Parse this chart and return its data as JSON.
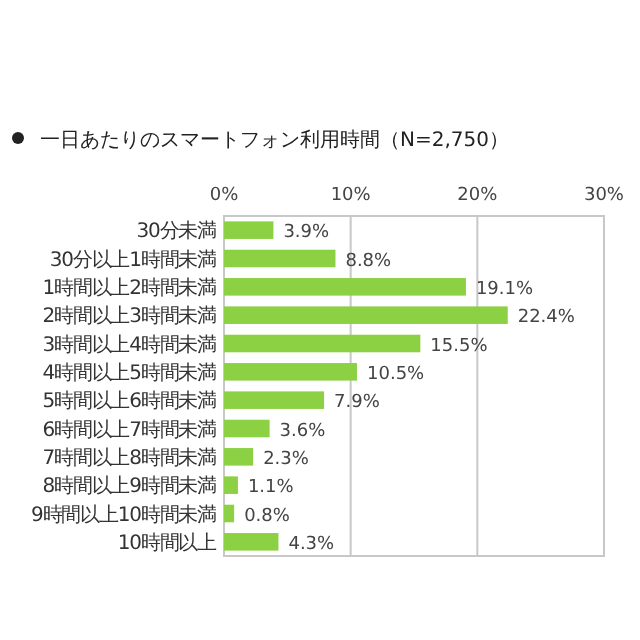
{
  "chart_data": {
    "type": "bar",
    "orientation": "horizontal",
    "title": "一日あたりのスマートフォン利用時間（N=2,750）",
    "categories": [
      "30分未満",
      "30分以上1時間未満",
      "1時間以上2時間未満",
      "2時間以上3時間未満",
      "3時間以上4時間未満",
      "4時間以上5時間未満",
      "5時間以上6時間未満",
      "6時間以上7時間未満",
      "7時間以上8時間未満",
      "8時間以上9時間未満",
      "9時間以上10時間未満",
      "10時間以上"
    ],
    "values": [
      3.9,
      8.8,
      19.1,
      22.4,
      15.5,
      10.5,
      7.9,
      3.6,
      2.3,
      1.1,
      0.8,
      4.3
    ],
    "value_labels": [
      "3.9%",
      "8.8%",
      "19.1%",
      "22.4%",
      "15.5%",
      "10.5%",
      "7.9%",
      "3.6%",
      "2.3%",
      "1.1%",
      "0.8%",
      "4.3%"
    ],
    "color": "#8cd044",
    "xlim": [
      0,
      30
    ],
    "xticks": [
      {
        "value": 0,
        "label": "0%"
      },
      {
        "value": 10,
        "label": "10%"
      },
      {
        "value": 20,
        "label": "20%"
      },
      {
        "value": 30,
        "label": "30%"
      }
    ],
    "grid": "x"
  }
}
